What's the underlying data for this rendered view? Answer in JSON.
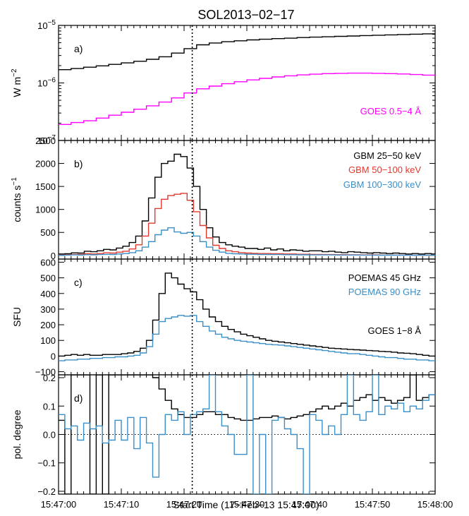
{
  "title": "SOL2013−02−17",
  "xlabel": "Start Time (17−Feb−13 15:47:00)",
  "x_tick_labels": [
    "15:47:00",
    "15:47:10",
    "15:47:20",
    "15:47:30",
    "15:47:40",
    "15:47:50",
    "15:48:00"
  ],
  "colors": {
    "black": "#000000",
    "magenta": "#ff00ff",
    "red": "#e03a2f",
    "blue": "#3a8fc8"
  },
  "chart_data": [
    {
      "type": "line",
      "panel_label": "a)",
      "ylabel": "W m−2",
      "yscale": "log",
      "ylim": [
        1e-07,
        1e-05
      ],
      "xlim": [
        0,
        60
      ],
      "y_tick_labels": [
        "10−7",
        "10−6",
        "10−5"
      ],
      "vline_x": 21.3,
      "series": [
        {
          "name": "GOES 1−8 Å",
          "color": "#000000",
          "step": 2.0,
          "x": [
            0,
            2,
            4,
            6,
            8,
            10,
            12,
            14,
            16,
            18,
            20,
            22,
            24,
            26,
            28,
            30,
            32,
            34,
            36,
            38,
            40,
            42,
            44,
            46,
            48,
            50,
            52,
            54,
            56,
            58,
            60
          ],
          "values": [
            1.7e-06,
            1.78e-06,
            1.88e-06,
            1.98e-06,
            2.1e-06,
            2.23e-06,
            2.38e-06,
            2.58e-06,
            2.85e-06,
            3.3e-06,
            3.95e-06,
            4.6e-06,
            4.95e-06,
            5.2e-06,
            5.4e-06,
            5.6e-06,
            5.75e-06,
            5.9e-06,
            6e-06,
            6.15e-06,
            6.25e-06,
            6.35e-06,
            6.45e-06,
            6.55e-06,
            6.65e-06,
            6.75e-06,
            6.85e-06,
            6.95e-06,
            7.05e-06,
            7.15e-06,
            7.2e-06
          ]
        },
        {
          "name": "GOES 0.5−4 Å",
          "color": "#ff00ff",
          "step": 2.0,
          "x": [
            0,
            2,
            4,
            6,
            8,
            10,
            12,
            14,
            16,
            18,
            20,
            22,
            24,
            26,
            28,
            30,
            32,
            34,
            36,
            38,
            40,
            42,
            44,
            46,
            48,
            50,
            52,
            54,
            56,
            58,
            60
          ],
          "values": [
            1.9e-07,
            2.05e-07,
            2.2e-07,
            2.45e-07,
            2.75e-07,
            3.1e-07,
            3.5e-07,
            4e-07,
            4.65e-07,
            5.5e-07,
            6.7e-07,
            7.9e-07,
            8.8e-07,
            9.7e-07,
            1.05e-06,
            1.13e-06,
            1.2e-06,
            1.27e-06,
            1.33e-06,
            1.38e-06,
            1.42e-06,
            1.45e-06,
            1.47e-06,
            1.48e-06,
            1.48e-06,
            1.47e-06,
            1.45e-06,
            1.43e-06,
            1.4e-06,
            1.37e-06,
            1.35e-06
          ]
        }
      ]
    },
    {
      "type": "line",
      "panel_label": "b)",
      "ylabel": "counts s−1",
      "ylim": [
        -80,
        2500
      ],
      "xlim": [
        0,
        60
      ],
      "y_tick_labels": [
        "0",
        "500",
        "1000",
        "1500",
        "2000",
        "2500"
      ],
      "vline_x": 21.3,
      "series": [
        {
          "name": "GBM 25−50 keV",
          "color": "#000000",
          "step": 1.024,
          "x": [
            0,
            1.024,
            2.048,
            3.072,
            4.096,
            5.12,
            6.144,
            7.168,
            8.192,
            9.216,
            10.24,
            11.264,
            12.288,
            13.312,
            14.336,
            15.36,
            16.384,
            17.408,
            18.432,
            19.456,
            20.48,
            21.504,
            22.528,
            23.552,
            24.576,
            25.6,
            26.624,
            27.648,
            28.672,
            29.696,
            30.72,
            31.744,
            32.768,
            33.792,
            34.816,
            35.84,
            36.864,
            37.888,
            38.912,
            39.936,
            40.96,
            41.984,
            43.008,
            44.032,
            45.056,
            46.08,
            47.104,
            48.128,
            49.152,
            50.176,
            51.2,
            52.224,
            53.248,
            54.272,
            55.296,
            56.32,
            57.344,
            58.368,
            59.392
          ],
          "values": [
            30,
            35,
            55,
            50,
            90,
            80,
            100,
            130,
            120,
            160,
            200,
            280,
            420,
            750,
            1250,
            1700,
            2000,
            2050,
            2200,
            2150,
            1900,
            1500,
            1000,
            600,
            400,
            280,
            230,
            200,
            180,
            150,
            150,
            130,
            160,
            120,
            140,
            100,
            120,
            110,
            90,
            100,
            100,
            80,
            90,
            70,
            60,
            80,
            70,
            60,
            50,
            60,
            50,
            40,
            50,
            40,
            30,
            40,
            30,
            40,
            30
          ]
        },
        {
          "name": "GBM 50−100 keV",
          "color": "#e03a2f",
          "step": 1.024,
          "x": [
            0,
            1.024,
            2.048,
            3.072,
            4.096,
            5.12,
            6.144,
            7.168,
            8.192,
            9.216,
            10.24,
            11.264,
            12.288,
            13.312,
            14.336,
            15.36,
            16.384,
            17.408,
            18.432,
            19.456,
            20.48,
            21.504,
            22.528,
            23.552,
            24.576,
            25.6,
            26.624,
            27.648,
            28.672,
            29.696,
            30.72,
            31.744,
            32.768,
            33.792,
            34.816,
            35.84,
            36.864,
            37.888,
            38.912,
            39.936,
            40.96,
            41.984,
            43.008,
            44.032,
            45.056,
            46.08,
            47.104,
            48.128,
            49.152,
            50.176,
            51.2,
            52.224,
            53.248,
            54.272,
            55.296,
            56.32,
            57.344,
            58.368,
            59.392
          ],
          "values": [
            10,
            12,
            20,
            20,
            35,
            30,
            40,
            55,
            50,
            70,
            90,
            140,
            230,
            420,
            700,
            1020,
            1220,
            1300,
            1330,
            1350,
            1200,
            950,
            650,
            380,
            220,
            150,
            100,
            80,
            60,
            50,
            45,
            40,
            40,
            35,
            35,
            30,
            30,
            25,
            25,
            20,
            20,
            18,
            18,
            15,
            15,
            12,
            12,
            10,
            10,
            10,
            8,
            8,
            8,
            6,
            6,
            5,
            5,
            5,
            5
          ]
        },
        {
          "name": "GBM 100−300 keV",
          "color": "#3a8fc8",
          "step": 1.024,
          "x": [
            0,
            1.024,
            2.048,
            3.072,
            4.096,
            5.12,
            6.144,
            7.168,
            8.192,
            9.216,
            10.24,
            11.264,
            12.288,
            13.312,
            14.336,
            15.36,
            16.384,
            17.408,
            18.432,
            19.456,
            20.48,
            21.504,
            22.528,
            23.552,
            24.576,
            25.6,
            26.624,
            27.648,
            28.672,
            29.696,
            30.72,
            31.744,
            32.768,
            33.792,
            34.816,
            35.84,
            36.864,
            37.888,
            38.912,
            39.936,
            40.96,
            41.984,
            43.008,
            44.032,
            45.056,
            46.08,
            47.104,
            48.128,
            49.152,
            50.176,
            51.2,
            52.224,
            53.248,
            54.272,
            55.296,
            56.32,
            57.344,
            58.368,
            59.392
          ],
          "values": [
            5,
            6,
            10,
            8,
            15,
            12,
            18,
            22,
            20,
            30,
            40,
            60,
            100,
            180,
            300,
            450,
            550,
            600,
            510,
            480,
            500,
            420,
            300,
            180,
            110,
            70,
            45,
            35,
            30,
            25,
            25,
            20,
            20,
            18,
            18,
            15,
            15,
            12,
            12,
            10,
            10,
            10,
            10,
            8,
            8,
            8,
            8,
            6,
            6,
            6,
            5,
            5,
            5,
            5,
            5,
            4,
            4,
            4,
            4
          ]
        }
      ]
    },
    {
      "type": "line",
      "panel_label": "c)",
      "ylabel": "SFU",
      "ylim": [
        -120,
        620
      ],
      "xlim": [
        0,
        60
      ],
      "y_tick_labels": [
        "−100",
        "0",
        "100",
        "200",
        "300",
        "400",
        "500",
        "600"
      ],
      "vline_x": 21.3,
      "series": [
        {
          "name": "POEMAS 45 GHz",
          "color": "#000000",
          "step": 1.0,
          "x": [
            0,
            1,
            2,
            3,
            4,
            5,
            6,
            7,
            8,
            9,
            10,
            11,
            12,
            13,
            14,
            15,
            16,
            17,
            18,
            19,
            20,
            21,
            22,
            23,
            24,
            25,
            26,
            27,
            28,
            29,
            30,
            31,
            32,
            33,
            34,
            35,
            36,
            37,
            38,
            39,
            40,
            41,
            42,
            43,
            44,
            45,
            46,
            47,
            48,
            49,
            50,
            51,
            52,
            53,
            54,
            55,
            56,
            57,
            58,
            59
          ],
          "values": [
            0,
            5,
            10,
            5,
            10,
            5,
            5,
            10,
            10,
            10,
            15,
            20,
            30,
            50,
            100,
            230,
            400,
            530,
            500,
            460,
            430,
            410,
            360,
            300,
            250,
            220,
            190,
            170,
            155,
            140,
            130,
            120,
            110,
            100,
            95,
            90,
            85,
            80,
            75,
            70,
            65,
            60,
            55,
            50,
            48,
            45,
            42,
            40,
            38,
            35,
            33,
            30,
            28,
            25,
            20,
            18,
            15,
            10,
            5,
            0
          ]
        },
        {
          "name": "POEMAS 90 GHz",
          "color": "#3a8fc8",
          "step": 1.0,
          "x": [
            0,
            1,
            2,
            3,
            4,
            5,
            6,
            7,
            8,
            9,
            10,
            11,
            12,
            13,
            14,
            15,
            16,
            17,
            18,
            19,
            20,
            21,
            22,
            23,
            24,
            25,
            26,
            27,
            28,
            29,
            30,
            31,
            32,
            33,
            34,
            35,
            36,
            37,
            38,
            39,
            40,
            41,
            42,
            43,
            44,
            45,
            46,
            47,
            48,
            49,
            50,
            51,
            52,
            53,
            54,
            55,
            56,
            57,
            58,
            59
          ],
          "values": [
            -30,
            -25,
            -25,
            -20,
            -20,
            -15,
            -15,
            -10,
            -10,
            -5,
            -5,
            0,
            5,
            20,
            60,
            140,
            220,
            240,
            250,
            260,
            255,
            260,
            220,
            190,
            160,
            140,
            120,
            110,
            100,
            95,
            90,
            85,
            80,
            75,
            72,
            70,
            65,
            60,
            55,
            50,
            45,
            40,
            35,
            30,
            25,
            20,
            15,
            15,
            10,
            5,
            0,
            -5,
            -10,
            -10,
            -15,
            -20,
            -20,
            -25,
            -25,
            -30
          ]
        }
      ]
    },
    {
      "type": "line",
      "panel_label": "d)",
      "ylabel": "pol. degree",
      "ylim": [
        -0.21,
        0.21
      ],
      "xlim": [
        0,
        60
      ],
      "y_tick_labels": [
        "−0.2",
        "−0.1",
        "0.0",
        "0.1",
        "0.2"
      ],
      "vline_x": 21.3,
      "series": [
        {
          "name": "45 GHz",
          "color": "#000000",
          "step": 1.0,
          "x": [
            0,
            1,
            2,
            3,
            4,
            5,
            6,
            7,
            8,
            9,
            10,
            11,
            12,
            13,
            14,
            15,
            16,
            17,
            18,
            19,
            20,
            21,
            22,
            23,
            24,
            25,
            26,
            27,
            28,
            29,
            30,
            31,
            32,
            33,
            34,
            35,
            36,
            37,
            38,
            39,
            40,
            41,
            42,
            43,
            44,
            45,
            46,
            47,
            48,
            49,
            50,
            51,
            52,
            53,
            54,
            55,
            56,
            57,
            58,
            59
          ],
          "values": [
            0.05,
            -0.21,
            0.21,
            0.21,
            0.21,
            -0.21,
            0.21,
            -0.21,
            0.21,
            0.21,
            0.21,
            0.21,
            0.21,
            0.21,
            0.21,
            0.2,
            0.16,
            0.12,
            0.09,
            0.07,
            0.06,
            0.06,
            0.07,
            0.08,
            0.08,
            0.07,
            0.07,
            0.06,
            0.055,
            0.05,
            0.05,
            0.055,
            0.06,
            0.06,
            0.065,
            0.06,
            0.055,
            0.06,
            0.065,
            0.07,
            0.08,
            0.09,
            0.1,
            0.09,
            0.1,
            0.11,
            0.1,
            0.12,
            0.13,
            0.14,
            0.12,
            0.13,
            0.12,
            0.11,
            0.12,
            0.13,
            0.21,
            0.12,
            0.13,
            0.14
          ]
        },
        {
          "name": "90 GHz",
          "color": "#3a8fc8",
          "step": 1.0,
          "x": [
            0,
            1,
            2,
            3,
            4,
            5,
            6,
            7,
            8,
            9,
            10,
            11,
            12,
            13,
            14,
            15,
            16,
            17,
            18,
            19,
            20,
            21,
            22,
            23,
            24,
            25,
            26,
            27,
            28,
            29,
            30,
            31,
            32,
            33,
            34,
            35,
            36,
            37,
            38,
            39,
            40,
            41,
            42,
            43,
            44,
            45,
            46,
            47,
            48,
            49,
            50,
            51,
            52,
            53,
            54,
            55,
            56,
            57,
            58,
            59
          ],
          "values": [
            0.07,
            0.02,
            0.03,
            -0.02,
            0.04,
            0.02,
            0.03,
            -0.03,
            -0.02,
            0.05,
            -0.02,
            0.06,
            -0.05,
            0.06,
            -0.03,
            -0.15,
            0.0,
            0.07,
            0.05,
            0.08,
            0.0,
            0.07,
            0.08,
            0.09,
            0.21,
            0.08,
            0.03,
            0.0,
            -0.07,
            -0.07,
            0.21,
            -0.21,
            0.0,
            -0.21,
            0.05,
            0.06,
            0.02,
            0.0,
            -0.05,
            -0.21,
            0.07,
            0.05,
            0.0,
            0.03,
            0.0,
            0.07,
            0.21,
            0.07,
            0.05,
            0.08,
            0.21,
            0.07,
            0.1,
            0.09,
            0.11,
            0.08,
            0.1,
            0.09,
            0.12,
            0.14
          ]
        }
      ]
    }
  ]
}
